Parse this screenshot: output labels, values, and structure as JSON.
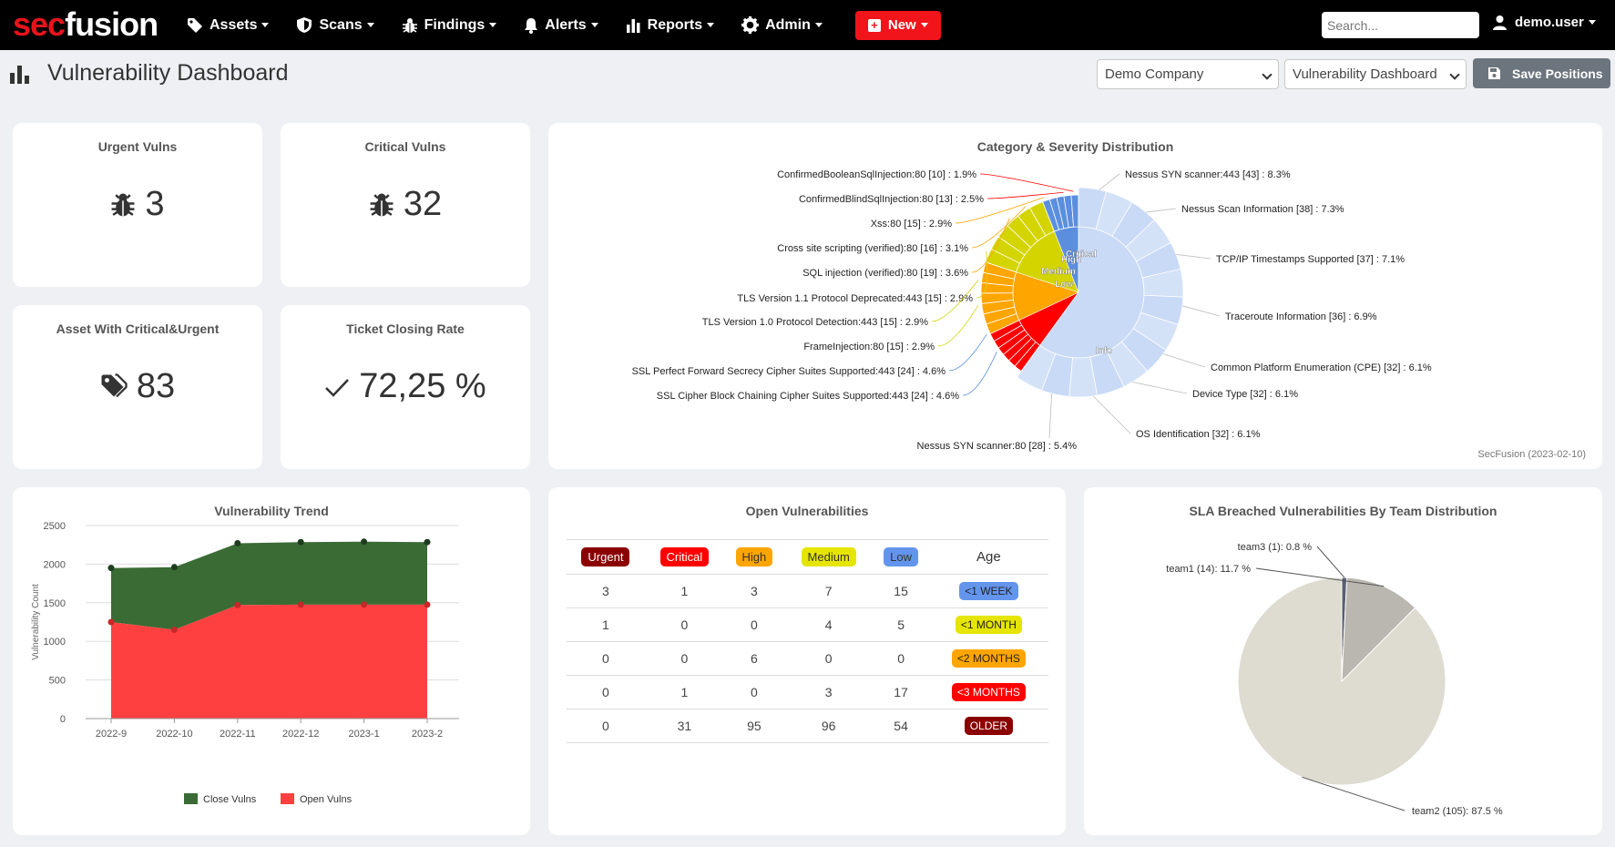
{
  "brand": {
    "part1": "sec",
    "part2": "fusion"
  },
  "nav": {
    "items": [
      {
        "label": "Assets",
        "icon": "tag-icon"
      },
      {
        "label": "Scans",
        "icon": "shield-icon"
      },
      {
        "label": "Findings",
        "icon": "bug-icon"
      },
      {
        "label": "Alerts",
        "icon": "bell-icon"
      },
      {
        "label": "Reports",
        "icon": "bar-chart-icon"
      },
      {
        "label": "Admin",
        "icon": "gear-icon"
      }
    ],
    "new_label": "New",
    "search_placeholder": "Search...",
    "user": "demo.user"
  },
  "header": {
    "title": "Vulnerability Dashboard",
    "company_select": "Demo Company",
    "dashboard_select": "Vulnerability Dashboard",
    "save_label": "Save Positions"
  },
  "stats": {
    "urgent": {
      "title": "Urgent Vulns",
      "value": "3"
    },
    "critical": {
      "title": "Critical Vulns",
      "value": "32"
    },
    "assets": {
      "title": "Asset With Critical&Urgent",
      "value": "83"
    },
    "closing": {
      "title": "Ticket Closing Rate",
      "value": "72,25 %"
    }
  },
  "category": {
    "title": "Category & Severity Distribution",
    "credit": "SecFusion (2023-02-10)",
    "inner_labels": [
      "Critical",
      "High",
      "Medium",
      "Low",
      "Info"
    ],
    "left_labels": [
      "ConfirmedBooleanSqlInjection:80 [10] : 1.9%",
      "ConfirmedBlindSqlInjection:80 [13] : 2.5%",
      "Xss:80 [15] : 2.9%",
      "Cross site scripting (verified):80 [16] : 3.1%",
      "SQL injection (verified):80 [19] : 3.6%",
      "TLS Version 1.1 Protocol Deprecated:443 [15] : 2.9%",
      "TLS Version 1.0 Protocol Detection:443 [15] : 2.9%",
      "FrameInjection:80 [15] : 2.9%",
      "SSL Perfect Forward Secrecy Cipher Suites Supported:443 [24] : 4.6%",
      "SSL Cipher Block Chaining Cipher Suites Supported:443 [24] : 4.6%"
    ],
    "right_labels": [
      "Nessus SYN scanner:443 [43] : 8.3%",
      "Nessus Scan Information [38] : 7.3%",
      "TCP/IP Timestamps Supported [37] : 7.1%",
      "Traceroute Information [36] : 6.9%",
      "Common Platform Enumeration (CPE) [32] : 6.1%",
      "Device Type [32] : 6.1%",
      "OS Identification [32] : 6.1%"
    ],
    "bottom_label": "Nessus SYN scanner:80 [28] : 5.4%",
    "colors": {
      "critical": "#ff0000",
      "high": "#ffa500",
      "medium": "#d4d400",
      "low": "#5b8fde",
      "info": "#c9daf6"
    }
  },
  "trend": {
    "title": "Vulnerability Trend",
    "ylabel": "Vulnerability Count",
    "legend": [
      "Close Vulns",
      "Open Vulns"
    ]
  },
  "open_vulns": {
    "title": "Open Vulnerabilities",
    "headers": [
      "Urgent",
      "Critical",
      "High",
      "Medium",
      "Low"
    ],
    "age_header": "Age",
    "header_colors": [
      {
        "bg": "#8b0000",
        "fg": "#ffffff"
      },
      {
        "bg": "#ff0000",
        "fg": "#ffffff"
      },
      {
        "bg": "#ffa500",
        "fg": "#333333"
      },
      {
        "bg": "#e5e500",
        "fg": "#333333"
      },
      {
        "bg": "#6495ed",
        "fg": "#333333"
      }
    ],
    "rows": [
      {
        "values": [
          "3",
          "1",
          "3",
          "7",
          "15"
        ],
        "age": "<1 WEEK",
        "age_bg": "#6495ed",
        "age_fg": "#222222"
      },
      {
        "values": [
          "1",
          "0",
          "0",
          "4",
          "5"
        ],
        "age": "<1 MONTH",
        "age_bg": "#e5e500",
        "age_fg": "#222222"
      },
      {
        "values": [
          "0",
          "0",
          "6",
          "0",
          "0"
        ],
        "age": "<2 MONTHS",
        "age_bg": "#ffa500",
        "age_fg": "#222222"
      },
      {
        "values": [
          "0",
          "1",
          "0",
          "3",
          "17"
        ],
        "age": "<3 MONTHS",
        "age_bg": "#ff0000",
        "age_fg": "#ffffff"
      },
      {
        "values": [
          "0",
          "31",
          "95",
          "96",
          "54"
        ],
        "age": "OLDER",
        "age_bg": "#8b0000",
        "age_fg": "#ffffff"
      }
    ]
  },
  "sla": {
    "title": "SLA Breached Vulnerabilities By Team Distribution",
    "labels": [
      "team3 (1): 0.8 %",
      "team1 (14): 11.7 %",
      "team2 (105): 87.5 %"
    ]
  },
  "chart_data": [
    {
      "type": "area",
      "title": "Vulnerability Trend",
      "xlabel": "",
      "ylabel": "Vulnerability Count",
      "categories": [
        "2022-9",
        "2022-10",
        "2022-11",
        "2022-12",
        "2023-1",
        "2023-2"
      ],
      "ylim": [
        0,
        2500
      ],
      "yticks": [
        0,
        500,
        1000,
        1500,
        2000,
        2500
      ],
      "stacked": true,
      "legend": "bottom",
      "series": [
        {
          "name": "Open Vulns",
          "color": "#ff4040",
          "values": [
            1250,
            1150,
            1470,
            1475,
            1475,
            1475
          ]
        },
        {
          "name": "Close Vulns",
          "color": "#3a6b35",
          "values": [
            700,
            810,
            800,
            810,
            815,
            810
          ]
        }
      ]
    },
    {
      "type": "pie",
      "title": "SLA Breached Vulnerabilities By Team Distribution",
      "slices": [
        {
          "label": "team3",
          "count": 1,
          "percent": 0.8,
          "color": "#5a5f72"
        },
        {
          "label": "team1",
          "count": 14,
          "percent": 11.7,
          "color": "#b9b7b0"
        },
        {
          "label": "team2",
          "count": 105,
          "percent": 87.5,
          "color": "#dedbd1"
        }
      ]
    },
    {
      "type": "pie",
      "title": "Category & Severity Distribution",
      "inner": [
        {
          "label": "Critical",
          "percent": 8
        },
        {
          "label": "High",
          "percent": 12
        },
        {
          "label": "Medium",
          "percent": 14
        },
        {
          "label": "Low",
          "percent": 6
        },
        {
          "label": "Info",
          "percent": 60
        }
      ]
    }
  ]
}
